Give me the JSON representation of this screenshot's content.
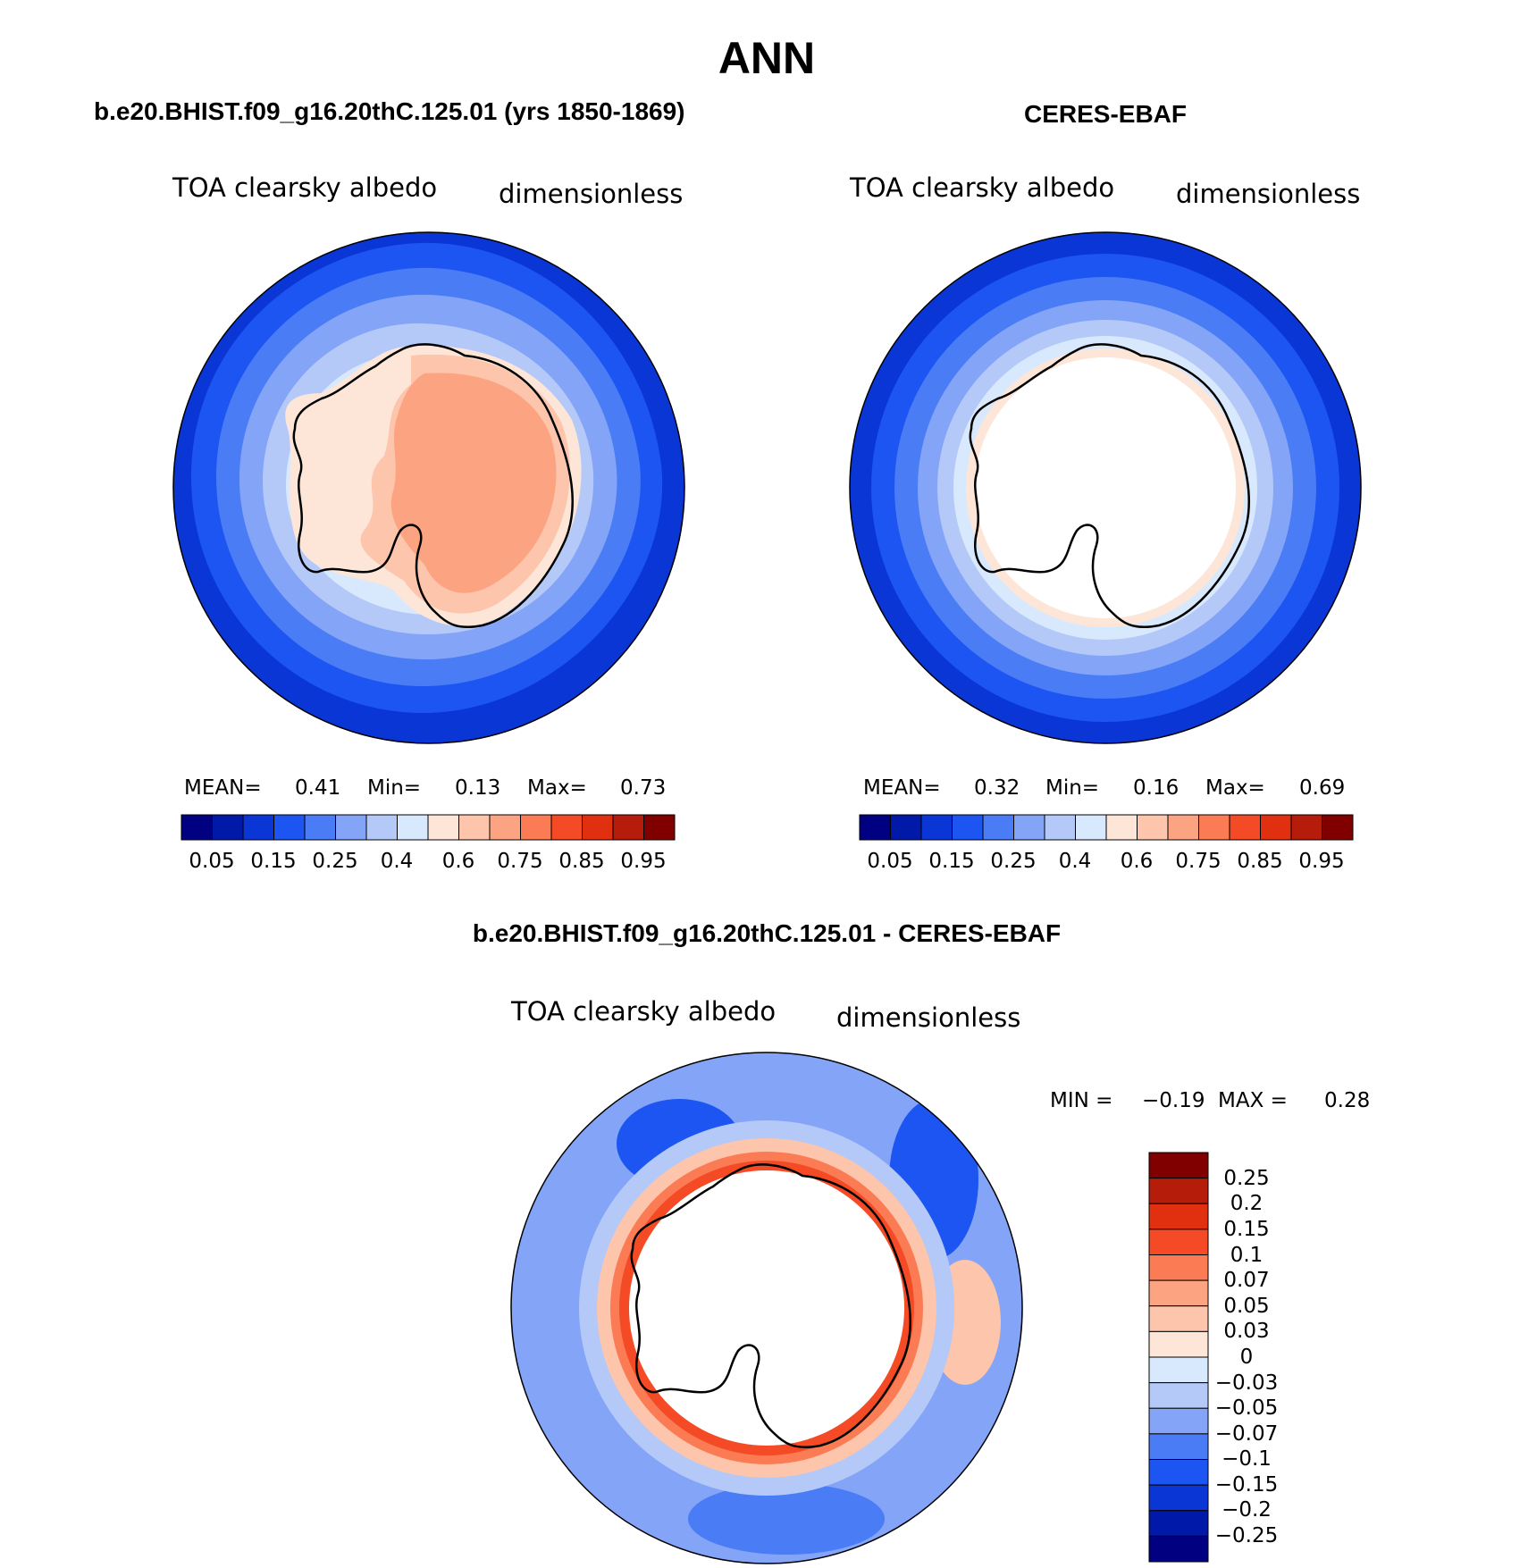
{
  "chart_data": {
    "type": "polar-contour-map",
    "title": "ANN",
    "colors": {
      "abs": [
        "#000080",
        "#0019a8",
        "#0a36d6",
        "#1c55f2",
        "#4a7cf5",
        "#84a5f7",
        "#b4c9f8",
        "#d8e8fd",
        "#fde6d7",
        "#fcc5ac",
        "#fca482",
        "#fb7c54",
        "#f44a25",
        "#e03010",
        "#b51c0a",
        "#800000"
      ],
      "diff": [
        "#000080",
        "#0019a8",
        "#0a36d6",
        "#1c55f2",
        "#4a7cf5",
        "#84a5f7",
        "#b4c9f8",
        "#d8e8fd",
        "#fde6d7",
        "#fcc5ac",
        "#fca482",
        "#fb7c54",
        "#f44a25",
        "#e03010",
        "#b51c0a",
        "#800000"
      ],
      "land": "#000000",
      "background": "#ffffff"
    },
    "panels": [
      {
        "id": "model",
        "title": "b.e20.BHIST.f09_g16.20thC.125.01 (yrs 1850-1869)",
        "variable": "TOA clearsky albedo",
        "units": "dimensionless",
        "stats": {
          "mean_label": "MEAN=",
          "mean": "0.41",
          "min_label": "Min=",
          "min": "0.13",
          "max_label": "Max=",
          "max": "0.73"
        },
        "colorbar_labels": [
          "0.05",
          "0.15",
          "0.25",
          "0.4",
          "0.6",
          "0.75",
          "0.85",
          "0.95"
        ]
      },
      {
        "id": "obs",
        "title": "CERES-EBAF",
        "variable": "TOA clearsky albedo",
        "units": "dimensionless",
        "stats": {
          "mean_label": "MEAN=",
          "mean": "0.32",
          "min_label": "Min=",
          "min": "0.16",
          "max_label": "Max=",
          "max": "0.69"
        },
        "colorbar_labels": [
          "0.05",
          "0.15",
          "0.25",
          "0.4",
          "0.6",
          "0.75",
          "0.85",
          "0.95"
        ]
      },
      {
        "id": "diff",
        "title": "b.e20.BHIST.f09_g16.20thC.125.01 - CERES-EBAF",
        "variable": "TOA clearsky albedo",
        "units": "dimensionless",
        "stats": {
          "min_label": "MIN =",
          "min": "−0.19",
          "max_label": "MAX =",
          "max": "0.28"
        },
        "colorbar_labels": [
          "0.25",
          "0.2",
          "0.15",
          "0.1",
          "0.07",
          "0.05",
          "0.03",
          "0",
          "−0.03",
          "−0.05",
          "−0.07",
          "−0.1",
          "−0.15",
          "−0.2",
          "−0.25"
        ]
      }
    ]
  }
}
